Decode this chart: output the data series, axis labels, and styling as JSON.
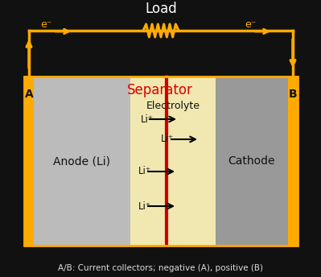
{
  "bg_color": "#111111",
  "fig_width": 3.99,
  "fig_height": 3.44,
  "dpi": 100,
  "anode_color": "#bbbbbb",
  "cathode_color": "#999999",
  "electrolyte_color": "#f0e8b0",
  "separator_color": "#cc0000",
  "collector_color": "#ffaa00",
  "circuit_color": "#ffaa00",
  "arrow_color": "#000000",
  "title_text": "Load",
  "title_color": "#ffffff",
  "separator_label": "Separator",
  "separator_label_color": "#dd0000",
  "electrolyte_label": "Electrolyte",
  "anode_label": "Anode (Li)",
  "cathode_label": "Cathode",
  "label_A": "A",
  "label_B": "B",
  "footnote": "A/B: Current collectors; negative (A), positive (B)",
  "footnote_color": "#dddddd",
  "li_label": "Li⁺",
  "e_label": "e⁻"
}
